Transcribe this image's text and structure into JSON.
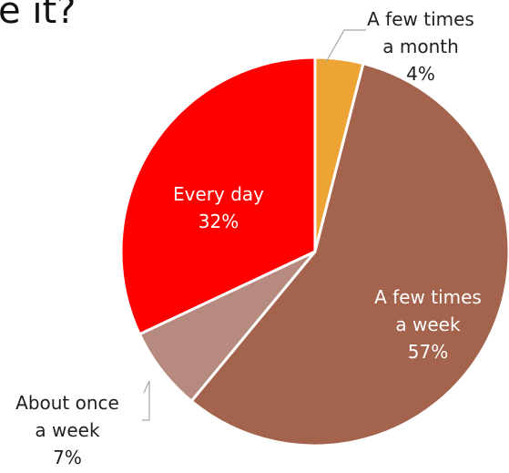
{
  "title_fragment": "e it?",
  "chart_data": {
    "type": "pie",
    "slices": [
      {
        "name": "A few times a month",
        "label_lines": [
          "A few times",
          "a month"
        ],
        "value_label": "4%",
        "value": 4,
        "color": "#EDA435",
        "label_color": "#1f1f1f",
        "label_inside": false
      },
      {
        "name": "A few times a week",
        "label_lines": [
          "A few times",
          "a week"
        ],
        "value_label": "57%",
        "value": 57,
        "color": "#A4634D",
        "label_color": "#ffffff",
        "label_inside": true
      },
      {
        "name": "About once a week",
        "label_lines": [
          "About once",
          "a week"
        ],
        "value_label": "7%",
        "value": 7,
        "color": "#B68A7E",
        "label_color": "#1f1f1f",
        "label_inside": false
      },
      {
        "name": "Every day",
        "label_lines": [
          "Every day"
        ],
        "value_label": "32%",
        "value": 32,
        "color": "#FF0000",
        "label_color": "#ffffff",
        "label_inside": true
      }
    ],
    "start_angle": "12 o'clock",
    "direction": "clockwise",
    "legend": "none"
  }
}
